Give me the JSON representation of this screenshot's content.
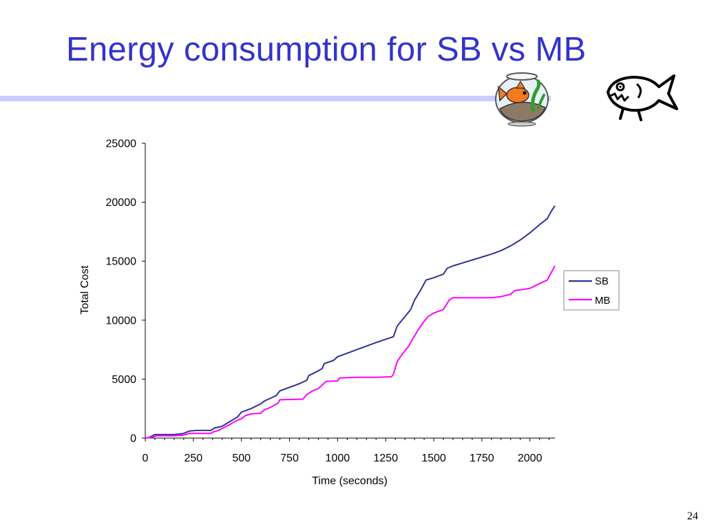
{
  "slide": {
    "title": "Energy consumption for SB vs MB",
    "page_number": "24",
    "colors": {
      "title": "#3333CC",
      "rule": "#CCCCFF"
    }
  },
  "decorations": {
    "left": "fishbowl-icon",
    "right": "fish-icon"
  },
  "chart_data": {
    "type": "line",
    "title": "",
    "xlabel": "Time (seconds)",
    "ylabel": "Total Cost",
    "xlim": [
      0,
      2130
    ],
    "ylim": [
      0,
      25000
    ],
    "xticks": [
      0,
      250,
      500,
      750,
      1000,
      1250,
      1500,
      1750,
      2000
    ],
    "yticks": [
      0,
      5000,
      10000,
      15000,
      20000,
      25000
    ],
    "xtick_labels": [
      "0",
      "250",
      "500",
      "750",
      "1000",
      "1250",
      "1500",
      "1750",
      "2000"
    ],
    "ytick_labels": [
      "0",
      "5000",
      "10000",
      "15000",
      "20000",
      "25000"
    ],
    "grid": false,
    "legend_position": "right",
    "series": [
      {
        "name": "SB",
        "color": "#2E3192",
        "points": [
          [
            0,
            0
          ],
          [
            20,
            50
          ],
          [
            50,
            300
          ],
          [
            100,
            300
          ],
          [
            150,
            300
          ],
          [
            180,
            350
          ],
          [
            200,
            400
          ],
          [
            230,
            600
          ],
          [
            270,
            650
          ],
          [
            340,
            650
          ],
          [
            360,
            850
          ],
          [
            400,
            1000
          ],
          [
            440,
            1400
          ],
          [
            480,
            1800
          ],
          [
            500,
            2200
          ],
          [
            550,
            2500
          ],
          [
            600,
            2900
          ],
          [
            620,
            3150
          ],
          [
            680,
            3600
          ],
          [
            700,
            4000
          ],
          [
            800,
            4600
          ],
          [
            840,
            4900
          ],
          [
            850,
            5300
          ],
          [
            900,
            5700
          ],
          [
            920,
            5900
          ],
          [
            930,
            6300
          ],
          [
            980,
            6600
          ],
          [
            1000,
            6900
          ],
          [
            1100,
            7500
          ],
          [
            1200,
            8100
          ],
          [
            1290,
            8600
          ],
          [
            1310,
            9500
          ],
          [
            1350,
            10300
          ],
          [
            1380,
            10900
          ],
          [
            1400,
            11700
          ],
          [
            1430,
            12500
          ],
          [
            1460,
            13400
          ],
          [
            1500,
            13600
          ],
          [
            1550,
            13900
          ],
          [
            1570,
            14400
          ],
          [
            1600,
            14600
          ],
          [
            1700,
            15100
          ],
          [
            1800,
            15600
          ],
          [
            1850,
            15900
          ],
          [
            1900,
            16300
          ],
          [
            1950,
            16800
          ],
          [
            2000,
            17400
          ],
          [
            2050,
            18100
          ],
          [
            2090,
            18600
          ],
          [
            2110,
            19200
          ],
          [
            2130,
            19700
          ]
        ]
      },
      {
        "name": "MB",
        "color": "#FF00FF",
        "points": [
          [
            0,
            0
          ],
          [
            30,
            50
          ],
          [
            60,
            200
          ],
          [
            100,
            200
          ],
          [
            150,
            200
          ],
          [
            200,
            250
          ],
          [
            230,
            400
          ],
          [
            340,
            400
          ],
          [
            350,
            500
          ],
          [
            380,
            650
          ],
          [
            410,
            900
          ],
          [
            440,
            1150
          ],
          [
            470,
            1450
          ],
          [
            500,
            1650
          ],
          [
            520,
            1900
          ],
          [
            550,
            2050
          ],
          [
            600,
            2100
          ],
          [
            620,
            2400
          ],
          [
            650,
            2600
          ],
          [
            690,
            2950
          ],
          [
            700,
            3250
          ],
          [
            820,
            3300
          ],
          [
            840,
            3700
          ],
          [
            870,
            4000
          ],
          [
            900,
            4200
          ],
          [
            920,
            4500
          ],
          [
            940,
            4800
          ],
          [
            1000,
            4850
          ],
          [
            1010,
            5100
          ],
          [
            1100,
            5150
          ],
          [
            1200,
            5150
          ],
          [
            1280,
            5200
          ],
          [
            1290,
            5400
          ],
          [
            1310,
            6500
          ],
          [
            1340,
            7200
          ],
          [
            1370,
            7800
          ],
          [
            1390,
            8400
          ],
          [
            1420,
            9200
          ],
          [
            1450,
            9900
          ],
          [
            1470,
            10300
          ],
          [
            1500,
            10600
          ],
          [
            1550,
            10900
          ],
          [
            1580,
            11700
          ],
          [
            1600,
            11900
          ],
          [
            1700,
            11900
          ],
          [
            1800,
            11900
          ],
          [
            1850,
            12000
          ],
          [
            1900,
            12200
          ],
          [
            1920,
            12500
          ],
          [
            2000,
            12700
          ],
          [
            2050,
            13100
          ],
          [
            2090,
            13400
          ],
          [
            2110,
            14000
          ],
          [
            2130,
            14600
          ]
        ]
      }
    ]
  }
}
